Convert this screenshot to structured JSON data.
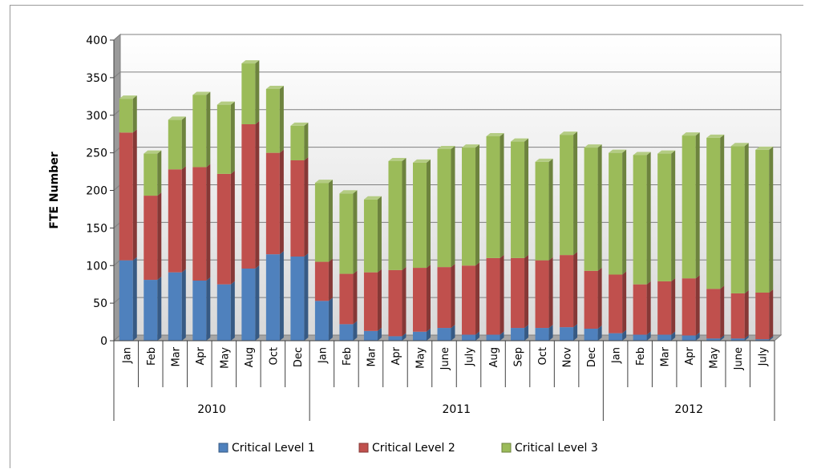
{
  "chart_data": {
    "type": "bar",
    "stacked": true,
    "ylabel": "FTE Number",
    "ylim": [
      0,
      400
    ],
    "yticks": [
      0,
      50,
      100,
      150,
      200,
      250,
      300,
      350,
      400
    ],
    "grid": true,
    "legend_position": "bottom",
    "groups": [
      {
        "label": "2010",
        "categories": [
          "Jan",
          "Feb",
          "Mar",
          "Apr",
          "May",
          "Aug",
          "Oct",
          "Dec"
        ]
      },
      {
        "label": "2011",
        "categories": [
          "Jan",
          "Feb",
          "Mar",
          "Apr",
          "May",
          "June",
          "July",
          "Aug",
          "Sep",
          "Oct",
          "Nov",
          "Dec"
        ]
      },
      {
        "label": "2012",
        "categories": [
          "Jan",
          "Feb",
          "Mar",
          "Apr",
          "May",
          "June",
          "July"
        ]
      }
    ],
    "series": [
      {
        "name": "Critical Level 1",
        "color": "#4f81bd",
        "values": [
          107,
          81,
          91,
          80,
          75,
          96,
          115,
          112,
          53,
          22,
          13,
          6,
          12,
          17,
          8,
          8,
          17,
          17,
          18,
          16,
          10,
          8,
          8,
          7,
          3,
          3,
          2
        ]
      },
      {
        "name": "Critical Level 2",
        "color": "#c0504d",
        "values": [
          170,
          112,
          137,
          151,
          147,
          192,
          135,
          128,
          52,
          67,
          78,
          88,
          85,
          81,
          92,
          102,
          93,
          90,
          96,
          77,
          78,
          67,
          71,
          76,
          66,
          60,
          62
        ]
      },
      {
        "name": "Critical Level 3",
        "color": "#9bbb59",
        "values": [
          45,
          56,
          66,
          96,
          92,
          81,
          85,
          46,
          105,
          107,
          97,
          145,
          140,
          157,
          157,
          162,
          155,
          131,
          160,
          164,
          162,
          172,
          170,
          190,
          201,
          196,
          190
        ]
      }
    ]
  }
}
